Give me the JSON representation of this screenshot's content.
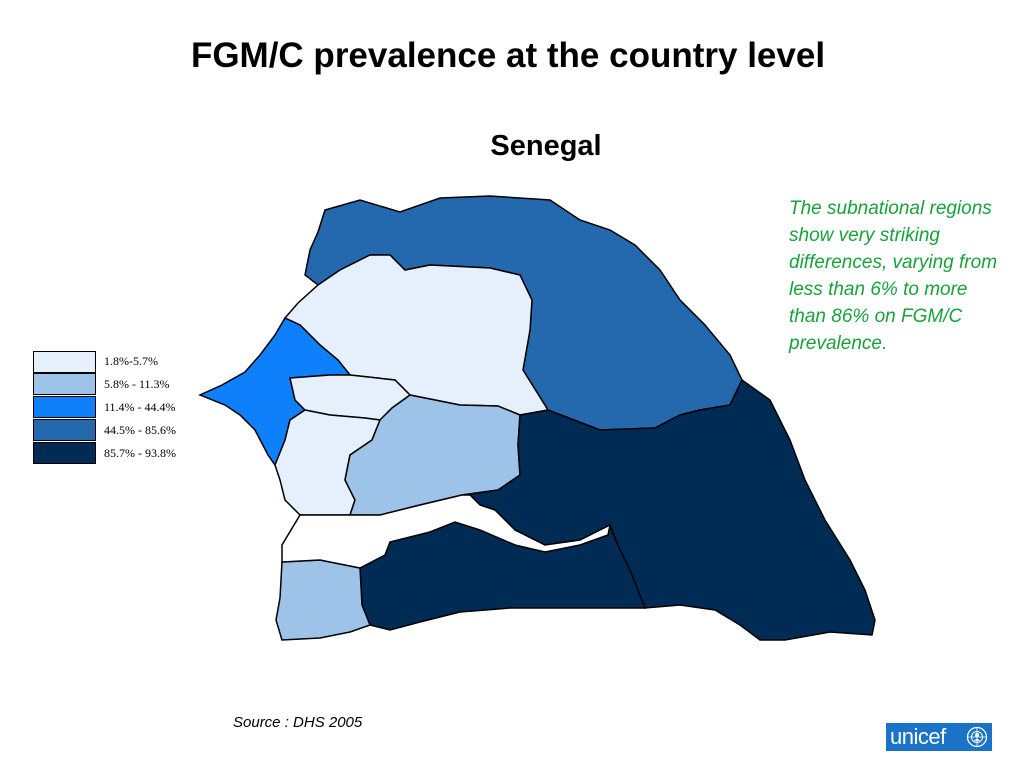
{
  "slide": {
    "title": "FGM/C prevalence at the country level",
    "map_title": "Senegal"
  },
  "legend": {
    "items": [
      {
        "label": "1.8%-5.7%",
        "color": "#e6f0fc"
      },
      {
        "label": "5.8% - 11.3%",
        "color": "#9dc3e9"
      },
      {
        "label": "11.4% - 44.4%",
        "color": "#0f80fb"
      },
      {
        "label": "44.5% - 85.6%",
        "color": "#2468ad"
      },
      {
        "label": "85.7% - 93.8%",
        "color": "#002b55"
      }
    ]
  },
  "map": {
    "country": "Senegal",
    "boundary_color": "#000000",
    "gambia_fill": "#ffffff"
  },
  "note": {
    "text": "The subnational regions show very striking differences, varying from less than 6% to more than 86% on FGM/C prevalence."
  },
  "source": {
    "text": "Source : DHS 2005"
  },
  "logo": {
    "text": "unicef",
    "icon": "unicef-emblem-icon",
    "color": "#1b73c7"
  }
}
